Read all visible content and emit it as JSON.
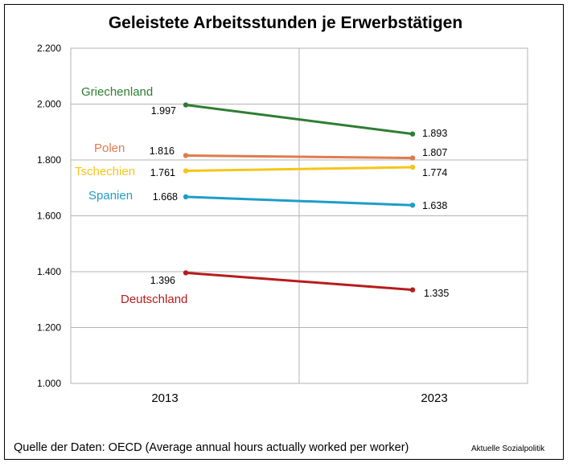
{
  "title": "Geleistete Arbeitsstunden je Erwerbstätigen",
  "source": "Quelle der Daten: OECD (Average annual hours actually worked per worker)",
  "credit": "Aktuelle Sozialpolitik",
  "chart_data": {
    "type": "line",
    "title": "Geleistete Arbeitsstunden je Erwerbstätigen",
    "categories": [
      "2013",
      "2023"
    ],
    "ylim": [
      1000,
      2200
    ],
    "yticks": [
      1000,
      1200,
      1400,
      1600,
      1800,
      2000,
      2200
    ],
    "ytick_labels": [
      "1.000",
      "1.200",
      "1.400",
      "1.600",
      "1.800",
      "2.000",
      "2.200"
    ],
    "grid": true,
    "series": [
      {
        "name": "Griechenland",
        "values": [
          1997,
          1893
        ],
        "labels": [
          "1.997",
          "1.893"
        ],
        "color": "#2e7d32"
      },
      {
        "name": "Polen",
        "values": [
          1816,
          1807
        ],
        "labels": [
          "1.816",
          "1.807"
        ],
        "color": "#e07b4a"
      },
      {
        "name": "Tschechien",
        "values": [
          1761,
          1774
        ],
        "labels": [
          "1.761",
          "1.774"
        ],
        "color": "#f5c518"
      },
      {
        "name": "Spanien",
        "values": [
          1668,
          1638
        ],
        "labels": [
          "1.668",
          "1.638"
        ],
        "color": "#1e9dc8"
      },
      {
        "name": "Deutschland",
        "values": [
          1396,
          1335
        ],
        "labels": [
          "1.396",
          "1.335"
        ],
        "color": "#b71c1c"
      }
    ]
  }
}
